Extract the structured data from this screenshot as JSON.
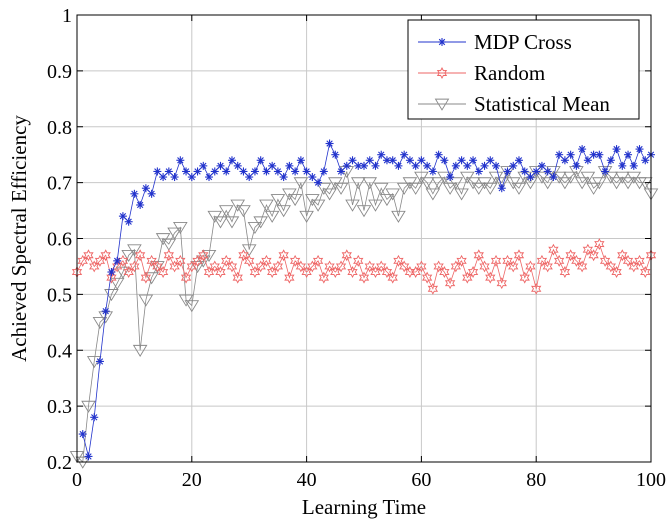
{
  "chart_data": {
    "type": "line",
    "title": "",
    "xlabel": "Learning Time",
    "ylabel": "Achieved Spectral Efficiency",
    "xlim": [
      0,
      100
    ],
    "ylim": [
      0.2,
      1.0
    ],
    "grid": true,
    "legend_position": "top-right",
    "x_ticks": [
      0,
      20,
      40,
      60,
      80,
      100
    ],
    "y_ticks": [
      0.2,
      0.3,
      0.4,
      0.5,
      0.6,
      0.7,
      0.8,
      0.9,
      1.0
    ],
    "x_tick_labels": [
      "0",
      "20",
      "40",
      "60",
      "80",
      "100"
    ],
    "y_tick_labels": [
      "0.2",
      "0.3",
      "0.4",
      "0.5",
      "0.6",
      "0.7",
      "0.8",
      "0.9",
      "1"
    ],
    "series": [
      {
        "name": "MDP Cross",
        "color": "#2233cc",
        "marker": "star",
        "x": [
          1,
          2,
          3,
          4,
          5,
          6,
          7,
          8,
          9,
          10,
          11,
          12,
          13,
          14,
          15,
          16,
          17,
          18,
          19,
          20,
          21,
          22,
          23,
          24,
          25,
          26,
          27,
          28,
          29,
          30,
          31,
          32,
          33,
          34,
          35,
          36,
          37,
          38,
          39,
          40,
          41,
          42,
          43,
          44,
          45,
          46,
          47,
          48,
          49,
          50,
          51,
          52,
          53,
          54,
          55,
          56,
          57,
          58,
          59,
          60,
          61,
          62,
          63,
          64,
          65,
          66,
          67,
          68,
          69,
          70,
          71,
          72,
          73,
          74,
          75,
          76,
          77,
          78,
          79,
          80,
          81,
          82,
          83,
          84,
          85,
          86,
          87,
          88,
          89,
          90,
          91,
          92,
          93,
          94,
          95,
          96,
          97,
          98,
          99,
          100
        ],
        "y": [
          0.25,
          0.21,
          0.28,
          0.38,
          0.47,
          0.54,
          0.56,
          0.64,
          0.63,
          0.68,
          0.66,
          0.69,
          0.68,
          0.72,
          0.71,
          0.72,
          0.71,
          0.74,
          0.72,
          0.71,
          0.72,
          0.73,
          0.71,
          0.72,
          0.73,
          0.72,
          0.74,
          0.73,
          0.72,
          0.71,
          0.72,
          0.74,
          0.72,
          0.73,
          0.72,
          0.71,
          0.73,
          0.72,
          0.74,
          0.72,
          0.71,
          0.7,
          0.72,
          0.77,
          0.75,
          0.72,
          0.73,
          0.74,
          0.73,
          0.73,
          0.74,
          0.73,
          0.75,
          0.74,
          0.74,
          0.73,
          0.75,
          0.74,
          0.73,
          0.74,
          0.73,
          0.72,
          0.75,
          0.74,
          0.71,
          0.73,
          0.74,
          0.73,
          0.74,
          0.72,
          0.73,
          0.74,
          0.73,
          0.69,
          0.72,
          0.73,
          0.74,
          0.72,
          0.71,
          0.72,
          0.73,
          0.72,
          0.71,
          0.75,
          0.74,
          0.75,
          0.73,
          0.76,
          0.74,
          0.75,
          0.75,
          0.72,
          0.74,
          0.76,
          0.73,
          0.75,
          0.73,
          0.76,
          0.74,
          0.75
        ]
      },
      {
        "name": "Random",
        "color": "#ee6666",
        "marker": "hexagram",
        "x": [
          0,
          1,
          2,
          3,
          4,
          5,
          6,
          7,
          8,
          9,
          10,
          11,
          12,
          13,
          14,
          15,
          16,
          17,
          18,
          19,
          20,
          21,
          22,
          23,
          24,
          25,
          26,
          27,
          28,
          29,
          30,
          31,
          32,
          33,
          34,
          35,
          36,
          37,
          38,
          39,
          40,
          41,
          42,
          43,
          44,
          45,
          46,
          47,
          48,
          49,
          50,
          51,
          52,
          53,
          54,
          55,
          56,
          57,
          58,
          59,
          60,
          61,
          62,
          63,
          64,
          65,
          66,
          67,
          68,
          69,
          70,
          71,
          72,
          73,
          74,
          75,
          76,
          77,
          78,
          79,
          80,
          81,
          82,
          83,
          84,
          85,
          86,
          87,
          88,
          89,
          90,
          91,
          92,
          93,
          94,
          95,
          96,
          97,
          98,
          99,
          100
        ],
        "y": [
          0.54,
          0.56,
          0.57,
          0.55,
          0.56,
          0.57,
          0.53,
          0.55,
          0.56,
          0.54,
          0.55,
          0.57,
          0.53,
          0.56,
          0.55,
          0.54,
          0.57,
          0.55,
          0.56,
          0.53,
          0.55,
          0.56,
          0.57,
          0.54,
          0.55,
          0.54,
          0.56,
          0.55,
          0.53,
          0.57,
          0.56,
          0.54,
          0.55,
          0.56,
          0.54,
          0.55,
          0.57,
          0.53,
          0.56,
          0.55,
          0.54,
          0.55,
          0.56,
          0.53,
          0.55,
          0.54,
          0.55,
          0.57,
          0.54,
          0.56,
          0.53,
          0.55,
          0.54,
          0.55,
          0.54,
          0.53,
          0.56,
          0.55,
          0.54,
          0.54,
          0.55,
          0.53,
          0.51,
          0.55,
          0.54,
          0.52,
          0.55,
          0.56,
          0.53,
          0.54,
          0.57,
          0.55,
          0.53,
          0.56,
          0.52,
          0.56,
          0.55,
          0.57,
          0.53,
          0.55,
          0.51,
          0.56,
          0.55,
          0.58,
          0.56,
          0.54,
          0.57,
          0.56,
          0.55,
          0.58,
          0.57,
          0.59,
          0.56,
          0.55,
          0.54,
          0.57,
          0.56,
          0.55,
          0.56,
          0.54,
          0.57
        ]
      },
      {
        "name": "Statistical Mean",
        "color": "#888888",
        "marker": "triangle-down",
        "x": [
          0,
          1,
          2,
          3,
          4,
          5,
          6,
          7,
          8,
          9,
          10,
          11,
          12,
          13,
          14,
          15,
          16,
          17,
          18,
          19,
          20,
          21,
          22,
          23,
          24,
          25,
          26,
          27,
          28,
          29,
          30,
          31,
          32,
          33,
          34,
          35,
          36,
          37,
          38,
          39,
          40,
          41,
          42,
          43,
          44,
          45,
          46,
          47,
          48,
          49,
          50,
          51,
          52,
          53,
          54,
          55,
          56,
          57,
          58,
          59,
          60,
          61,
          62,
          63,
          64,
          65,
          66,
          67,
          68,
          69,
          70,
          71,
          72,
          73,
          74,
          75,
          76,
          77,
          78,
          79,
          80,
          81,
          82,
          83,
          84,
          85,
          86,
          87,
          88,
          89,
          90,
          91,
          92,
          93,
          94,
          95,
          96,
          97,
          98,
          99,
          100
        ],
        "y": [
          0.21,
          0.2,
          0.3,
          0.38,
          0.45,
          0.46,
          0.5,
          0.52,
          0.54,
          0.57,
          0.58,
          0.4,
          0.49,
          0.53,
          0.55,
          0.6,
          0.59,
          0.61,
          0.62,
          0.49,
          0.48,
          0.55,
          0.56,
          0.57,
          0.64,
          0.63,
          0.65,
          0.63,
          0.66,
          0.65,
          0.58,
          0.62,
          0.63,
          0.66,
          0.64,
          0.67,
          0.65,
          0.68,
          0.67,
          0.7,
          0.64,
          0.67,
          0.66,
          0.69,
          0.68,
          0.7,
          0.69,
          0.72,
          0.66,
          0.7,
          0.65,
          0.7,
          0.66,
          0.69,
          0.67,
          0.68,
          0.64,
          0.69,
          0.7,
          0.69,
          0.71,
          0.7,
          0.68,
          0.7,
          0.71,
          0.69,
          0.7,
          0.68,
          0.71,
          0.7,
          0.69,
          0.7,
          0.69,
          0.71,
          0.7,
          0.72,
          0.7,
          0.69,
          0.71,
          0.7,
          0.72,
          0.71,
          0.7,
          0.72,
          0.71,
          0.7,
          0.71,
          0.72,
          0.7,
          0.71,
          0.69,
          0.7,
          0.72,
          0.71,
          0.7,
          0.71,
          0.7,
          0.71,
          0.7,
          0.7,
          0.68
        ]
      }
    ]
  }
}
